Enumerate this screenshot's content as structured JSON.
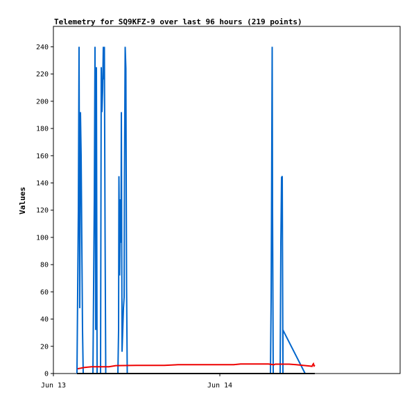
{
  "chart_data": {
    "type": "line",
    "title": "Telemetry for SQ9KFZ-9 over last 96 hours (219 points)",
    "ylabel": "Values",
    "xlabel": "",
    "ylim": [
      0,
      255
    ],
    "xlim": [
      0,
      50
    ],
    "y_ticks": [
      0,
      20,
      40,
      60,
      80,
      100,
      120,
      140,
      160,
      180,
      200,
      220,
      240
    ],
    "x_ticks": [
      {
        "x": 0,
        "label": "Jun 13"
      },
      {
        "x": 24,
        "label": "Jun 14"
      }
    ],
    "grid": false,
    "colors": {
      "blue": "#0066cc",
      "red": "#ee0000",
      "black": "#000000"
    },
    "series": [
      {
        "color": "#0066cc",
        "points": [
          [
            3.4,
            0
          ],
          [
            3.6,
            120
          ],
          [
            3.7,
            240
          ],
          [
            3.8,
            48
          ],
          [
            3.9,
            192
          ],
          [
            4.0,
            160
          ],
          [
            4.1,
            96
          ],
          [
            4.2,
            32
          ],
          [
            4.3,
            0
          ],
          [
            5.7,
            0
          ],
          [
            5.8,
            64
          ],
          [
            5.9,
            128
          ],
          [
            6.0,
            240
          ],
          [
            6.1,
            32
          ],
          [
            6.2,
            225
          ],
          [
            6.3,
            0
          ],
          [
            6.8,
            0
          ],
          [
            6.9,
            225
          ],
          [
            7.0,
            192
          ],
          [
            7.1,
            208
          ],
          [
            7.2,
            240
          ],
          [
            7.25,
            216
          ],
          [
            7.35,
            240
          ],
          [
            7.45,
            104
          ],
          [
            7.55,
            0
          ],
          [
            9.3,
            0
          ],
          [
            9.4,
            32
          ],
          [
            9.45,
            145
          ],
          [
            9.55,
            72
          ],
          [
            9.65,
            128
          ],
          [
            9.75,
            96
          ],
          [
            9.8,
            192
          ],
          [
            9.9,
            16
          ],
          [
            10.0,
            32
          ],
          [
            10.1,
            48
          ],
          [
            10.2,
            56
          ],
          [
            10.25,
            144
          ],
          [
            10.35,
            240
          ],
          [
            10.45,
            224
          ],
          [
            10.55,
            64
          ],
          [
            10.65,
            0
          ],
          [
            31.3,
            0
          ],
          [
            31.4,
            56
          ],
          [
            31.45,
            112
          ],
          [
            31.55,
            240
          ],
          [
            31.6,
            120
          ],
          [
            31.7,
            0
          ],
          [
            32.7,
            0
          ],
          [
            32.8,
            96
          ],
          [
            32.9,
            144
          ],
          [
            33.0,
            145
          ],
          [
            33.1,
            0
          ],
          [
            33.1,
            32
          ],
          [
            36.3,
            0
          ]
        ]
      },
      {
        "color": "#ee0000",
        "points": [
          [
            3.5,
            3.5
          ],
          [
            4.5,
            4.5
          ],
          [
            5.5,
            5.0
          ],
          [
            8.0,
            5.0
          ],
          [
            9.0,
            5.8
          ],
          [
            12.0,
            6.0
          ],
          [
            16.0,
            6.0
          ],
          [
            18.0,
            6.5
          ],
          [
            26.0,
            6.5
          ],
          [
            27.0,
            7.0
          ],
          [
            31.0,
            7.0
          ],
          [
            31.8,
            6.5
          ],
          [
            32.0,
            6.9
          ],
          [
            34.0,
            6.9
          ],
          [
            35.0,
            6.5
          ],
          [
            37.0,
            5.5
          ],
          [
            37.3,
            5.3
          ],
          [
            37.4,
            6.5
          ],
          [
            37.5,
            7.2
          ],
          [
            37.6,
            5.6
          ],
          [
            37.7,
            6.1
          ]
        ]
      },
      {
        "color": "#000000",
        "points": [
          [
            3.4,
            0
          ],
          [
            37.7,
            0
          ]
        ]
      }
    ]
  }
}
